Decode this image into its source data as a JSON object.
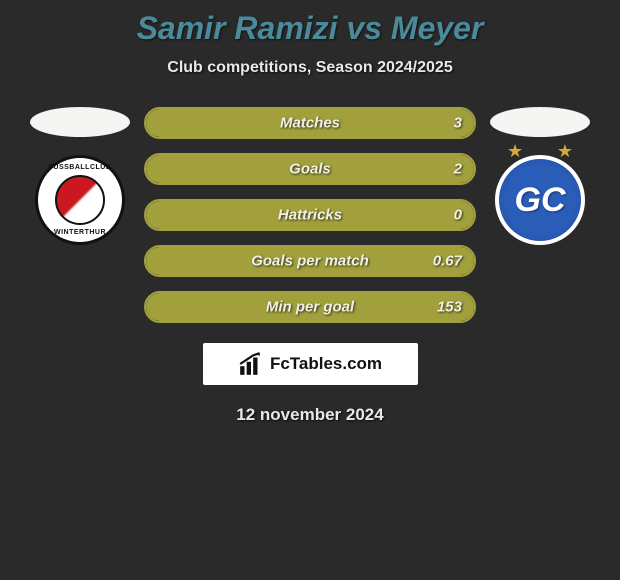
{
  "colors": {
    "background": "#2a2a2a",
    "title": "#4a8a9a",
    "bar_fill": "#a2a03c",
    "bar_border": "#a2a03c",
    "text": "#f0f0e8",
    "brand_bg": "#ffffff",
    "brand_text": "#111111"
  },
  "title": "Samir Ramizi vs Meyer",
  "subtitle": "Club competitions, Season 2024/2025",
  "left_team": {
    "name": "FC Winterthur",
    "crest_text_top": "FUSSBALLCLUB",
    "crest_text_bottom": "WINTERTHUR"
  },
  "right_team": {
    "name": "Grasshopper Club",
    "crest_letters": "GC"
  },
  "bars": [
    {
      "label": "Matches",
      "left_val": null,
      "right_val": "3",
      "fill_pct": 100
    },
    {
      "label": "Goals",
      "left_val": null,
      "right_val": "2",
      "fill_pct": 100
    },
    {
      "label": "Hattricks",
      "left_val": null,
      "right_val": "0",
      "fill_pct": 100
    },
    {
      "label": "Goals per match",
      "left_val": null,
      "right_val": "0.67",
      "fill_pct": 100
    },
    {
      "label": "Min per goal",
      "left_val": null,
      "right_val": "153",
      "fill_pct": 100
    }
  ],
  "brand": {
    "text": "FcTables.com",
    "icon": "bar-chart"
  },
  "date": "12 november 2024"
}
